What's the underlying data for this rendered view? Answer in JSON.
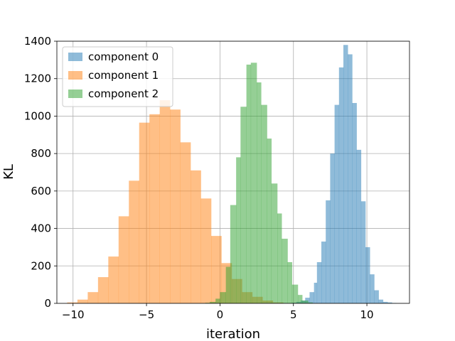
{
  "chart_data": {
    "type": "bar",
    "subtype": "histogram",
    "title": "",
    "xlabel": "iteration",
    "ylabel": "KL",
    "xlim": [
      -11.1,
      12.9
    ],
    "ylim": [
      0,
      1400
    ],
    "xticks": [
      -10,
      -5,
      0,
      5,
      10
    ],
    "xtick_labels": [
      "−10",
      "−5",
      "0",
      "5",
      "10"
    ],
    "yticks": [
      0,
      200,
      400,
      600,
      800,
      1000,
      1200,
      1400
    ],
    "ytick_labels": [
      "0",
      "200",
      "400",
      "600",
      "800",
      "1000",
      "1200",
      "1400"
    ],
    "grid": true,
    "legend_position": "top-left",
    "series": [
      {
        "name": "component 0",
        "color": "#1f77b4",
        "alpha": 0.5,
        "bins": [
          [
            4.9,
            5.2,
            3
          ],
          [
            5.2,
            5.5,
            8
          ],
          [
            5.5,
            5.8,
            15
          ],
          [
            5.8,
            6.1,
            30
          ],
          [
            6.1,
            6.4,
            60
          ],
          [
            6.4,
            6.6,
            110
          ],
          [
            6.6,
            6.9,
            220
          ],
          [
            6.9,
            7.2,
            330
          ],
          [
            7.2,
            7.5,
            550
          ],
          [
            7.5,
            7.8,
            800
          ],
          [
            7.8,
            8.1,
            1060
          ],
          [
            8.1,
            8.4,
            1260
          ],
          [
            8.4,
            8.7,
            1380
          ],
          [
            8.7,
            9.0,
            1330
          ],
          [
            9.0,
            9.3,
            1070
          ],
          [
            9.3,
            9.6,
            820
          ],
          [
            9.6,
            9.9,
            545
          ],
          [
            9.9,
            10.2,
            300
          ],
          [
            10.2,
            10.5,
            155
          ],
          [
            10.5,
            10.8,
            70
          ],
          [
            10.8,
            11.1,
            20
          ],
          [
            11.1,
            11.4,
            8
          ],
          [
            11.4,
            11.7,
            5
          ],
          [
            11.7,
            12.0,
            2
          ]
        ]
      },
      {
        "name": "component 1",
        "color": "#ff7f0e",
        "alpha": 0.5,
        "bins": [
          [
            -10.4,
            -9.7,
            5
          ],
          [
            -9.7,
            -9.0,
            20
          ],
          [
            -9.0,
            -8.3,
            60
          ],
          [
            -8.3,
            -7.6,
            140
          ],
          [
            -7.6,
            -6.9,
            250
          ],
          [
            -6.9,
            -6.2,
            465
          ],
          [
            -6.2,
            -5.5,
            655
          ],
          [
            -5.5,
            -4.8,
            965
          ],
          [
            -4.8,
            -4.1,
            1010
          ],
          [
            -4.1,
            -3.4,
            1085
          ],
          [
            -3.4,
            -2.7,
            1035
          ],
          [
            -2.7,
            -2.0,
            860
          ],
          [
            -2.0,
            -1.3,
            710
          ],
          [
            -1.3,
            -0.6,
            560
          ],
          [
            -0.6,
            0.1,
            360
          ],
          [
            0.1,
            0.8,
            215
          ],
          [
            0.8,
            1.5,
            130
          ],
          [
            1.5,
            2.2,
            60
          ],
          [
            2.2,
            2.9,
            35
          ],
          [
            2.9,
            3.6,
            15
          ],
          [
            3.6,
            4.3,
            5
          ]
        ]
      },
      {
        "name": "component 2",
        "color": "#2ca02c",
        "alpha": 0.5,
        "bins": [
          [
            -1.0,
            -0.7,
            3
          ],
          [
            -0.7,
            -0.3,
            8
          ],
          [
            -0.3,
            0.0,
            25
          ],
          [
            0.0,
            0.4,
            60
          ],
          [
            0.4,
            0.7,
            195
          ],
          [
            0.7,
            1.1,
            525
          ],
          [
            1.1,
            1.4,
            780
          ],
          [
            1.4,
            1.8,
            1050
          ],
          [
            1.8,
            2.1,
            1275
          ],
          [
            2.1,
            2.5,
            1285
          ],
          [
            2.5,
            2.8,
            1180
          ],
          [
            2.8,
            3.2,
            1060
          ],
          [
            3.2,
            3.5,
            880
          ],
          [
            3.5,
            3.9,
            640
          ],
          [
            3.9,
            4.2,
            480
          ],
          [
            4.2,
            4.6,
            345
          ],
          [
            4.6,
            4.9,
            220
          ],
          [
            4.9,
            5.3,
            100
          ],
          [
            5.3,
            5.6,
            45
          ],
          [
            5.6,
            6.0,
            15
          ],
          [
            6.0,
            6.3,
            5
          ]
        ]
      }
    ]
  }
}
